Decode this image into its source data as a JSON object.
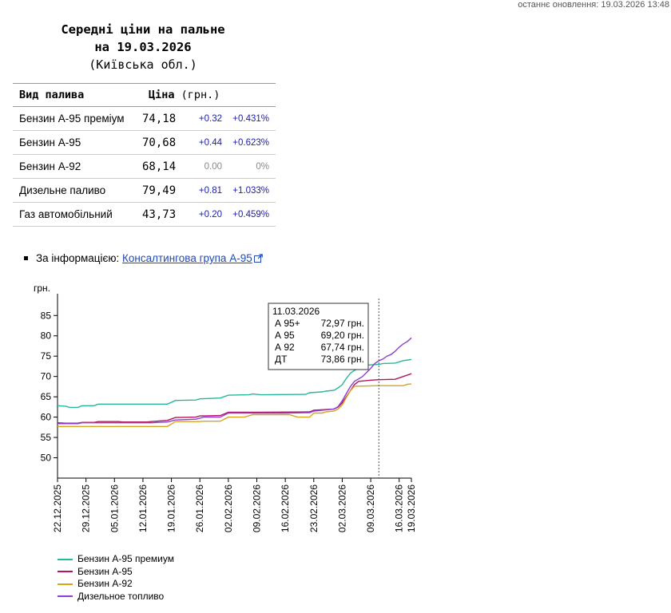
{
  "last_update": "останнє оновлення: 19.03.2026 13:48",
  "heading": {
    "line1": "Середні ціни на пальне",
    "line2": "на 19.03.2026",
    "line3": "(Київська обл.)"
  },
  "table": {
    "col_fuel": "Вид палива",
    "col_price": "Ціна",
    "col_price_unit": "(грн.)",
    "rows": [
      {
        "name": "Бензин А-95 преміум",
        "price": "74,18",
        "abs": "+0.32",
        "pct": "+0.431%"
      },
      {
        "name": "Бензин А-95",
        "price": "70,68",
        "abs": "+0.44",
        "pct": "+0.623%"
      },
      {
        "name": "Бензин А-92",
        "price": "68,14",
        "abs": "0.00",
        "pct": "0%"
      },
      {
        "name": "Дизельне паливо",
        "price": "79,49",
        "abs": "+0.81",
        "pct": "+1.033%"
      },
      {
        "name": "Газ автомобільний",
        "price": "43,73",
        "abs": "+0.20",
        "pct": "+0.459%"
      }
    ]
  },
  "source": {
    "label": "За інформацією: ",
    "link_text": "Консалтингова група А-95",
    "icon": "external-link-icon"
  },
  "colors": {
    "premium": "#26b89a",
    "a95": "#b0175e",
    "a92": "#d9a31c",
    "diesel": "#8d3fd3"
  },
  "tooltip": {
    "date": "11.03.2026",
    "rows": [
      {
        "label": "А 95+",
        "value": "72,97 грн."
      },
      {
        "label": "А 95",
        "value": "69,20 грн."
      },
      {
        "label": "А 92",
        "value": "67,74 грн."
      },
      {
        "label": "ДТ",
        "value": "73,86 грн."
      }
    ]
  },
  "chart_data": {
    "type": "line",
    "ylabel": "грн.",
    "ylim": [
      45,
      88
    ],
    "yticks": [
      50,
      55,
      60,
      65,
      70,
      75,
      80,
      85
    ],
    "xlim": [
      "2025-12-22",
      "2026-03-19"
    ],
    "xticks": [
      "22.12.2025",
      "29.12.2025",
      "05.01.2026",
      "12.01.2026",
      "19.01.2026",
      "26.01.2026",
      "02.02.2026",
      "09.02.2026",
      "16.02.2026",
      "23.02.2026",
      "02.03.2026",
      "09.03.2026",
      "16.03.2026",
      "19.03.2026"
    ],
    "xticks_dates": [
      "2025-12-22",
      "2025-12-29",
      "2026-01-05",
      "2026-01-12",
      "2026-01-19",
      "2026-01-26",
      "2026-02-02",
      "2026-02-09",
      "2026-02-16",
      "2026-02-23",
      "2026-03-02",
      "2026-03-09",
      "2026-03-16",
      "2026-03-19"
    ],
    "hover_date": "2026-03-11",
    "grid": false,
    "legend_position": "bottom",
    "series": [
      {
        "name": "Бензин А-95 премиум",
        "key": "premium",
        "points": [
          [
            "2025-12-22",
            62.8
          ],
          [
            "2025-12-24",
            62.7
          ],
          [
            "2025-12-25",
            62.4
          ],
          [
            "2025-12-27",
            62.4
          ],
          [
            "2025-12-28",
            62.8
          ],
          [
            "2025-12-31",
            62.8
          ],
          [
            "2026-01-01",
            63.2
          ],
          [
            "2026-01-18",
            63.2
          ],
          [
            "2026-01-20",
            64.1
          ],
          [
            "2026-01-25",
            64.2
          ],
          [
            "2026-01-26",
            64.5
          ],
          [
            "2026-01-31",
            64.7
          ],
          [
            "2026-02-02",
            65.4
          ],
          [
            "2026-02-07",
            65.5
          ],
          [
            "2026-02-08",
            65.7
          ],
          [
            "2026-02-10",
            65.5
          ],
          [
            "2026-02-21",
            65.6
          ],
          [
            "2026-02-22",
            66.0
          ],
          [
            "2026-02-25",
            66.2
          ],
          [
            "2026-02-26",
            66.4
          ],
          [
            "2026-02-28",
            66.6
          ],
          [
            "2026-03-01",
            67.2
          ],
          [
            "2026-03-02",
            68.0
          ],
          [
            "2026-03-03",
            69.5
          ],
          [
            "2026-03-04",
            70.8
          ],
          [
            "2026-03-05",
            71.5
          ],
          [
            "2026-03-08",
            72.8
          ],
          [
            "2026-03-11",
            72.97
          ],
          [
            "2026-03-12",
            73.2
          ],
          [
            "2026-03-15",
            73.3
          ],
          [
            "2026-03-17",
            73.9
          ],
          [
            "2026-03-19",
            74.18
          ]
        ]
      },
      {
        "name": "Бензин А-95",
        "key": "a95",
        "points": [
          [
            "2025-12-22",
            58.6
          ],
          [
            "2025-12-24",
            58.5
          ],
          [
            "2025-12-27",
            58.5
          ],
          [
            "2025-12-28",
            58.7
          ],
          [
            "2025-12-31",
            58.7
          ],
          [
            "2026-01-01",
            58.9
          ],
          [
            "2026-01-06",
            58.9
          ],
          [
            "2026-01-07",
            58.8
          ],
          [
            "2026-01-13",
            58.8
          ],
          [
            "2026-01-14",
            58.9
          ],
          [
            "2026-01-18",
            59.2
          ],
          [
            "2026-01-20",
            59.9
          ],
          [
            "2026-01-25",
            60.0
          ],
          [
            "2026-01-26",
            60.3
          ],
          [
            "2026-01-31",
            60.4
          ],
          [
            "2026-02-02",
            61.2
          ],
          [
            "2026-02-10",
            61.2
          ],
          [
            "2026-02-22",
            61.3
          ],
          [
            "2026-02-23",
            61.7
          ],
          [
            "2026-02-28",
            62.0
          ],
          [
            "2026-03-01",
            62.5
          ],
          [
            "2026-03-02",
            63.5
          ],
          [
            "2026-03-03",
            65.0
          ],
          [
            "2026-03-04",
            66.5
          ],
          [
            "2026-03-05",
            68.0
          ],
          [
            "2026-03-06",
            68.8
          ],
          [
            "2026-03-08",
            69.0
          ],
          [
            "2026-03-09",
            69.1
          ],
          [
            "2026-03-11",
            69.2
          ],
          [
            "2026-03-15",
            69.3
          ],
          [
            "2026-03-17",
            70.0
          ],
          [
            "2026-03-19",
            70.68
          ]
        ]
      },
      {
        "name": "Бензин А-92",
        "key": "a92",
        "points": [
          [
            "2025-12-22",
            57.7
          ],
          [
            "2026-01-18",
            57.7
          ],
          [
            "2026-01-20",
            58.9
          ],
          [
            "2026-01-26",
            58.9
          ],
          [
            "2026-01-27",
            59.0
          ],
          [
            "2026-01-31",
            59.0
          ],
          [
            "2026-02-02",
            60.0
          ],
          [
            "2026-02-06",
            60.0
          ],
          [
            "2026-02-08",
            60.6
          ],
          [
            "2026-02-17",
            60.6
          ],
          [
            "2026-02-19",
            60.0
          ],
          [
            "2026-02-22",
            60.0
          ],
          [
            "2026-02-23",
            61.0
          ],
          [
            "2026-02-25",
            61.0
          ],
          [
            "2026-02-26",
            61.3
          ],
          [
            "2026-02-28",
            61.5
          ],
          [
            "2026-03-01",
            62.0
          ],
          [
            "2026-03-02",
            63.0
          ],
          [
            "2026-03-03",
            64.8
          ],
          [
            "2026-03-04",
            66.5
          ],
          [
            "2026-03-05",
            67.6
          ],
          [
            "2026-03-11",
            67.74
          ],
          [
            "2026-03-17",
            67.74
          ],
          [
            "2026-03-18",
            68.1
          ],
          [
            "2026-03-19",
            68.14
          ]
        ]
      },
      {
        "name": "Дизельное топливо",
        "key": "diesel",
        "points": [
          [
            "2025-12-22",
            58.4
          ],
          [
            "2025-12-27",
            58.4
          ],
          [
            "2025-12-28",
            58.6
          ],
          [
            "2026-01-01",
            58.6
          ],
          [
            "2026-01-14",
            58.6
          ],
          [
            "2026-01-18",
            58.8
          ],
          [
            "2026-01-20",
            59.3
          ],
          [
            "2026-01-25",
            59.5
          ],
          [
            "2026-01-27",
            60.0
          ],
          [
            "2026-01-31",
            60.0
          ],
          [
            "2026-02-02",
            61.0
          ],
          [
            "2026-02-10",
            61.0
          ],
          [
            "2026-02-16",
            61.0
          ],
          [
            "2026-02-22",
            61.1
          ],
          [
            "2026-02-23",
            61.5
          ],
          [
            "2026-02-28",
            62.0
          ],
          [
            "2026-03-01",
            62.6
          ],
          [
            "2026-03-02",
            64.0
          ],
          [
            "2026-03-03",
            65.8
          ],
          [
            "2026-03-04",
            67.5
          ],
          [
            "2026-03-05",
            68.8
          ],
          [
            "2026-03-07",
            70.0
          ],
          [
            "2026-03-08",
            71.0
          ],
          [
            "2026-03-09",
            72.0
          ],
          [
            "2026-03-10",
            73.2
          ],
          [
            "2026-03-11",
            73.86
          ],
          [
            "2026-03-12",
            74.3
          ],
          [
            "2026-03-13",
            75.0
          ],
          [
            "2026-03-14",
            75.4
          ],
          [
            "2026-03-15",
            76.2
          ],
          [
            "2026-03-16",
            77.2
          ],
          [
            "2026-03-17",
            78.0
          ],
          [
            "2026-03-18",
            78.6
          ],
          [
            "2026-03-19",
            79.49
          ]
        ]
      }
    ]
  }
}
